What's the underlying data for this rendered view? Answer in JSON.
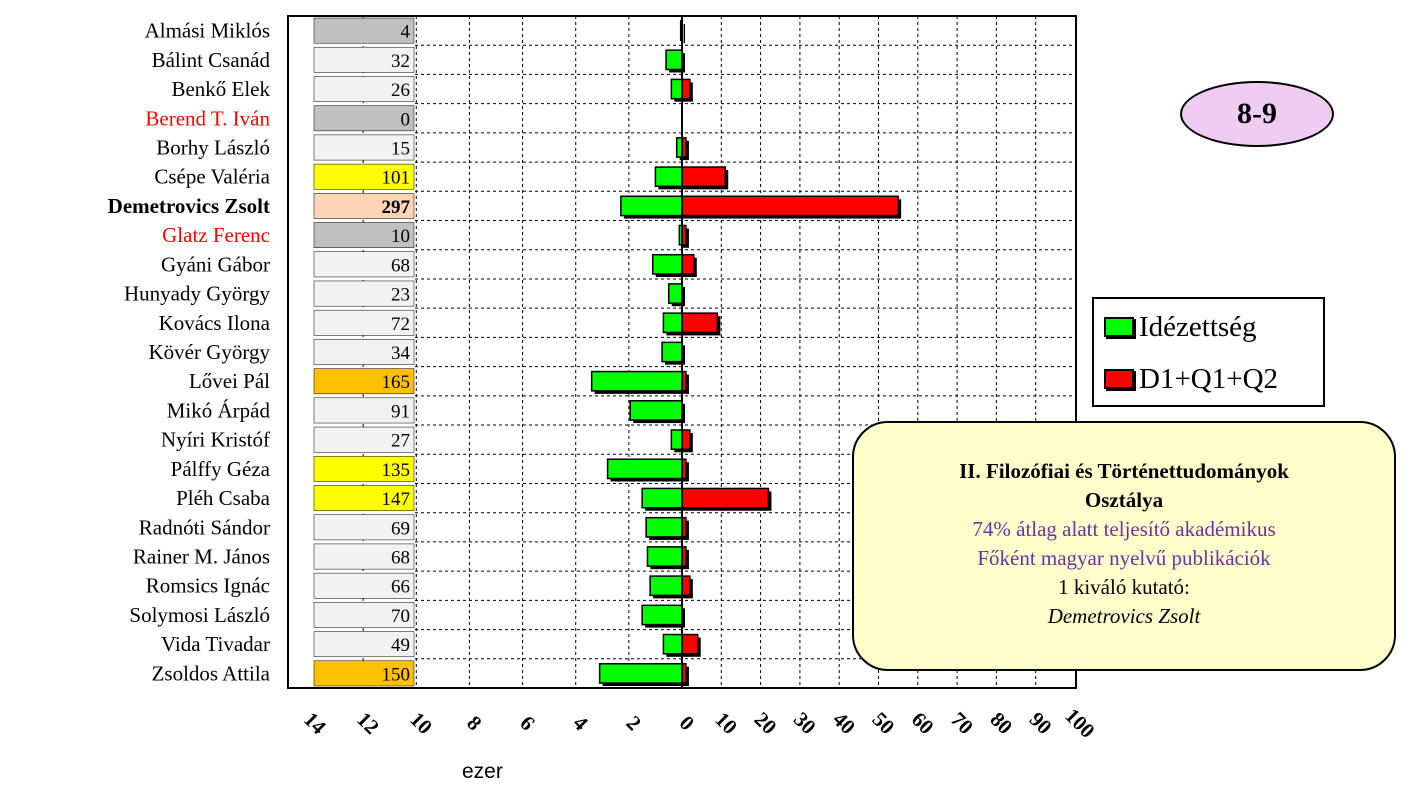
{
  "chart_data": {
    "type": "bar",
    "orientation": "horizontal",
    "categories": [
      "Almási Miklós",
      "Bálint Csanád",
      "Benkő Elek",
      "Berend T. Iván",
      "Borhy László",
      "Csépe Valéria",
      "Demetrovics Zsolt",
      "Glatz Ferenc",
      "Gyáni Gábor",
      "Hunyady György",
      "Kovács Ilona",
      "Kövér György",
      "Lővei Pál",
      "Mikó Árpád",
      "Nyíri Kristóf",
      "Pálffy Géza",
      "Pléh Csaba",
      "Radnóti Sándor",
      "Rainer M. János",
      "Romsics Ignác",
      "Solymosi László",
      "Vida Tivadar",
      "Zsoldos Attila"
    ],
    "name_colors": [
      "#000000",
      "#000000",
      "#000000",
      "#ff0000",
      "#000000",
      "#000000",
      "#000000",
      "#ff0000",
      "#000000",
      "#000000",
      "#000000",
      "#000000",
      "#000000",
      "#000000",
      "#000000",
      "#000000",
      "#000000",
      "#000000",
      "#000000",
      "#000000",
      "#000000",
      "#000000",
      "#000000"
    ],
    "name_bold": [
      false,
      false,
      false,
      false,
      false,
      false,
      true,
      false,
      false,
      false,
      false,
      false,
      false,
      false,
      false,
      false,
      false,
      false,
      false,
      false,
      false,
      false,
      false
    ],
    "counts": [
      4,
      32,
      26,
      0,
      15,
      101,
      297,
      10,
      68,
      23,
      72,
      34,
      165,
      91,
      27,
      135,
      147,
      69,
      68,
      66,
      70,
      49,
      150
    ],
    "count_colors": [
      "#c0c0c0",
      "#f2f2f2",
      "#f2f2f2",
      "#c0c0c0",
      "#f2f2f2",
      "#ffff00",
      "#fcd5b4",
      "#c0c0c0",
      "#f2f2f2",
      "#f2f2f2",
      "#f2f2f2",
      "#f2f2f2",
      "#ffc000",
      "#f2f2f2",
      "#f2f2f2",
      "#ffff00",
      "#ffff00",
      "#f2f2f2",
      "#f2f2f2",
      "#f2f2f2",
      "#f2f2f2",
      "#f2f2f2",
      "#ffc000"
    ],
    "series": [
      {
        "name": "Idézettség",
        "unit": "ezer",
        "color": "#00ff00",
        "values": [
          0.05,
          0.6,
          0.4,
          0.0,
          0.2,
          1.0,
          2.3,
          0.1,
          1.1,
          0.5,
          0.7,
          0.75,
          3.4,
          1.95,
          0.4,
          2.8,
          1.5,
          1.35,
          1.3,
          1.2,
          1.5,
          0.7,
          3.1
        ]
      },
      {
        "name": "D1+Q1+Q2",
        "color": "#ff0000",
        "values": [
          0,
          0,
          2,
          0,
          1,
          11,
          55,
          1,
          3,
          0,
          9,
          0,
          1,
          0,
          2,
          1,
          22,
          1,
          1,
          2,
          0,
          4,
          1
        ]
      }
    ],
    "left_axis": {
      "ticks": [
        "14",
        "12",
        "10",
        "8",
        "6",
        "4",
        "2",
        "0"
      ],
      "min": 0,
      "max": 14,
      "unit": "ezer"
    },
    "right_axis": {
      "ticks": [
        "0",
        "10",
        "20",
        "30",
        "40",
        "50",
        "60",
        "70",
        "80",
        "90",
        "100"
      ],
      "min": 0,
      "max": 100
    },
    "grid": true,
    "legend_position": "right"
  },
  "badge": {
    "text": "8-9"
  },
  "note": {
    "title_line1": "II. Filozófiai és Történettudományok",
    "title_line2": "Osztálya",
    "line1": "74% átlag alatt teljesítő akadémikus",
    "line2": "Főként magyar nyelvű publikációk",
    "line3": "1 kiváló kutató:",
    "line4": "Demetrovics Zsolt",
    "bg_color": "#ffffcc"
  },
  "axis_unit_label": "ezer"
}
